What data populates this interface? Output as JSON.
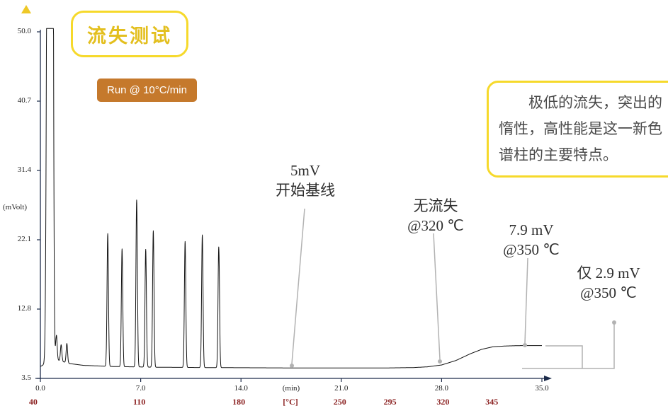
{
  "title_badge": {
    "label": "流失测试"
  },
  "run_badge": {
    "label": "Run @ 10°C/min"
  },
  "callout": {
    "text": "极低的流失，突出的惰性，高性能是这一新色谱柱的主要特点。"
  },
  "axis": {
    "ylabel": "(mVolt)",
    "y_ticks": [
      "50.0",
      "40.7",
      "31.4",
      "22.1",
      "12.8",
      "3.5"
    ],
    "x_ticks": [
      {
        "label": "0.0",
        "t": 0
      },
      {
        "label": "7.0",
        "t": 7
      },
      {
        "label": "14.0",
        "t": 14
      },
      {
        "label": "(min)",
        "t": 17.5
      },
      {
        "label": "21.0",
        "t": 21
      },
      {
        "label": "28.0",
        "t": 28
      },
      {
        "label": "35.0",
        "t": 35
      }
    ],
    "temp_ticks": [
      {
        "label": "40",
        "t": -0.5
      },
      {
        "label": "110",
        "t": 6.9
      },
      {
        "label": "180",
        "t": 13.85
      },
      {
        "label": "[°C]",
        "t": 17.45
      },
      {
        "label": "250",
        "t": 20.9
      },
      {
        "label": "295",
        "t": 24.4
      },
      {
        "label": "320",
        "t": 28.1
      },
      {
        "label": "345",
        "t": 31.5
      }
    ]
  },
  "annotations": [
    {
      "line1": "5mV",
      "line2": "开始基线"
    },
    {
      "line1": "无流失",
      "line2": "@320 ℃"
    },
    {
      "line1": "7.9 mV",
      "line2": "@350 ℃"
    },
    {
      "line1": "仅 2.9 mV",
      "line2": "@350 ℃"
    }
  ],
  "colors": {
    "accent_yellow": "#f6d92b",
    "title_gold": "#e3bf1e",
    "badge_orange": "#c5792c",
    "temp_red": "#8b2121",
    "pointer_gray": "#b2b2b2",
    "trace": "#141414",
    "axis": "#1c2b4a"
  },
  "chart_data": {
    "type": "line",
    "title": "流失测试 (column bleed test chromatogram)",
    "xlabel": "(min) / [°C]",
    "ylabel": "(mVolt)",
    "xlim": [
      0,
      35
    ],
    "ylim": [
      3.5,
      50.0
    ],
    "grid": false,
    "legend": "none",
    "y_tick_values": [
      50.0,
      40.7,
      31.4,
      22.1,
      12.8,
      3.5
    ],
    "x_tick_values_min": [
      0.0,
      7.0,
      14.0,
      21.0,
      28.0,
      35.0
    ],
    "temp_program_c": [
      40,
      110,
      180,
      250,
      295,
      320,
      345
    ],
    "ramp_rate": "10°C/min",
    "baseline_points": [
      [
        0,
        5.1
      ],
      [
        0.3,
        5.4
      ],
      [
        0.9,
        6.3
      ],
      [
        1.3,
        5.9
      ],
      [
        2,
        5.5
      ],
      [
        3,
        5.25
      ],
      [
        5,
        5.1
      ],
      [
        8,
        5.0
      ],
      [
        12,
        4.95
      ],
      [
        18,
        4.9
      ],
      [
        24,
        4.9
      ],
      [
        26,
        4.95
      ],
      [
        27,
        5.05
      ],
      [
        28,
        5.3
      ],
      [
        29,
        5.9
      ],
      [
        30,
        6.8
      ],
      [
        30.8,
        7.4
      ],
      [
        31.6,
        7.75
      ],
      [
        32.5,
        7.85
      ],
      [
        33.5,
        7.9
      ],
      [
        35,
        7.9
      ]
    ],
    "peaks": [
      {
        "t": 0.55,
        "h": 120,
        "w": 0.09
      },
      {
        "t": 0.82,
        "h": 120,
        "w": 0.07
      },
      {
        "t": 1.12,
        "h": 3.2,
        "w": 0.05
      },
      {
        "t": 1.45,
        "h": 2.2,
        "w": 0.05
      },
      {
        "t": 1.85,
        "h": 2.6,
        "w": 0.05
      },
      {
        "t": 4.7,
        "h": 17.8,
        "w": 0.05
      },
      {
        "t": 5.7,
        "h": 15.8,
        "w": 0.05
      },
      {
        "t": 6.72,
        "h": 22.4,
        "w": 0.05
      },
      {
        "t": 7.35,
        "h": 15.8,
        "w": 0.05
      },
      {
        "t": 7.88,
        "h": 18.3,
        "w": 0.05
      },
      {
        "t": 10.1,
        "h": 16.9,
        "w": 0.05
      },
      {
        "t": 11.3,
        "h": 17.8,
        "w": 0.05
      },
      {
        "t": 12.45,
        "h": 16.2,
        "w": 0.05
      }
    ],
    "annotation_values": [
      {
        "text": "5mV 开始基线",
        "value_mv": 5.0,
        "at_min": 17.5
      },
      {
        "text": "无流失 @320℃",
        "at_min": 28
      },
      {
        "text": "7.9 mV @350℃",
        "value_mv": 7.9
      },
      {
        "text": "仅 2.9 mV @350℃",
        "value_mv": 2.9
      }
    ]
  }
}
